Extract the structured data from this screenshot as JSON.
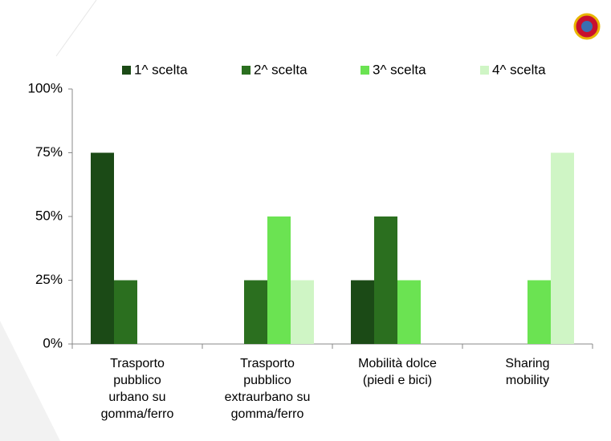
{
  "chart_data": {
    "type": "bar",
    "categories": [
      "Trasporto\npubblico\nurbano su\ngomma/ferro",
      "Trasporto\npubblico\nextraurbano su\ngomma/ferro",
      "Mobilità dolce\n(piedi e bici)",
      "Sharing\nmobility"
    ],
    "series": [
      {
        "name": "1^ scelta",
        "color": "#1b4a16",
        "values": [
          75,
          0,
          25,
          0
        ]
      },
      {
        "name": "2^ scelta",
        "color": "#2b6f1f",
        "values": [
          25,
          25,
          50,
          0
        ]
      },
      {
        "name": "3^ scelta",
        "color": "#6be352",
        "values": [
          0,
          50,
          25,
          25
        ]
      },
      {
        "name": "4^ scelta",
        "color": "#cff5c5",
        "values": [
          0,
          25,
          0,
          75
        ]
      }
    ],
    "ylim": [
      0,
      100
    ],
    "yticks": [
      {
        "value": 0,
        "label": "0%"
      },
      {
        "value": 25,
        "label": "25%"
      },
      {
        "value": 50,
        "label": "50%"
      },
      {
        "value": 75,
        "label": "75%"
      },
      {
        "value": 100,
        "label": "100%"
      }
    ],
    "legend": "top"
  }
}
